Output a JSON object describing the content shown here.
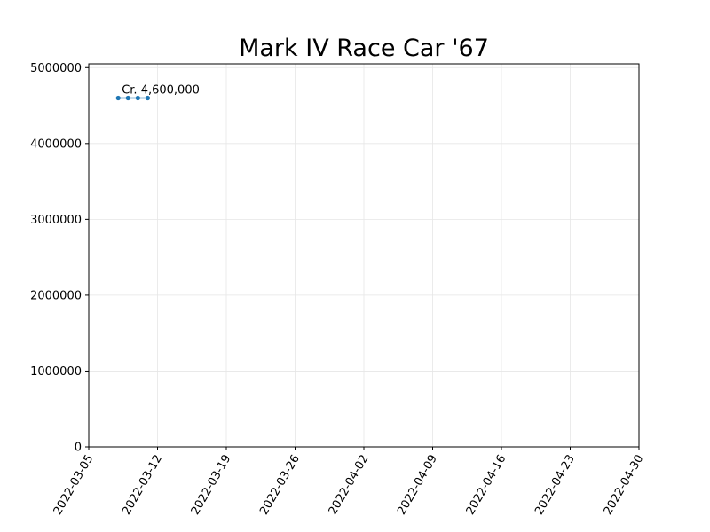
{
  "chart_data": {
    "type": "line",
    "title": "Mark IV Race Car '67",
    "xlabel": "",
    "ylabel": "",
    "x_axis_type": "date",
    "xlim": [
      "2022-03-05",
      "2022-04-30"
    ],
    "ylim": [
      0,
      5050000
    ],
    "x_ticks": [
      "2022-03-05",
      "2022-03-12",
      "2022-03-19",
      "2022-03-26",
      "2022-04-02",
      "2022-04-09",
      "2022-04-16",
      "2022-04-23",
      "2022-04-30"
    ],
    "y_ticks": [
      0,
      1000000,
      2000000,
      3000000,
      4000000,
      5000000
    ],
    "y_tick_labels": [
      "0",
      "1000000",
      "2000000",
      "3000000",
      "4000000",
      "5000000"
    ],
    "grid": true,
    "legend": "none",
    "series": [
      {
        "color": "#1f77b4",
        "marker": "circle",
        "points": [
          {
            "x": "2022-03-08",
            "y": 4600000
          },
          {
            "x": "2022-03-09",
            "y": 4600000
          },
          {
            "x": "2022-03-10",
            "y": 4600000
          },
          {
            "x": "2022-03-11",
            "y": 4600000
          }
        ]
      }
    ],
    "annotations": [
      {
        "text": "Cr. 4,600,000",
        "x": "2022-03-08",
        "y": 4600000
      }
    ]
  }
}
